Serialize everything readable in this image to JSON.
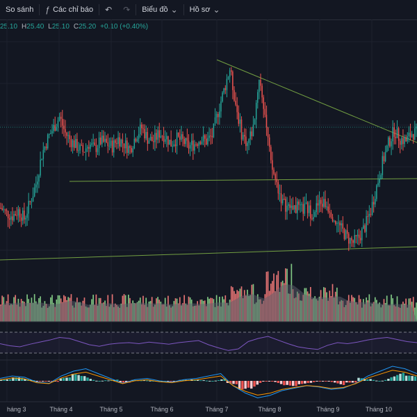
{
  "toolbar": {
    "compare_label": "So sánh",
    "indicators_label": "Các chỉ báo",
    "chart_label": "Biểu đồ",
    "profile_label": "Hồ sơ"
  },
  "ohlc": {
    "open": "25.10",
    "high_key": "H",
    "high": "25.40",
    "low_key": "L",
    "low": "25.10",
    "close_key": "C",
    "close": "25.20",
    "change": "+0.10 (+0.40%)"
  },
  "colors": {
    "up": "#26a69a",
    "down": "#ef5350",
    "vol_up": "#81c784",
    "vol_down": "#e57373",
    "trend": "#8bc34a"
  },
  "x_axis": {
    "labels": [
      "háng 3",
      "Tháng 4",
      "Tháng 5",
      "Tháng 6",
      "Tháng 7",
      "Tháng 8",
      "Tháng 9",
      "Tháng 10"
    ]
  },
  "chart_data": {
    "type": "candlestick",
    "price": [
      22.6,
      22.4,
      22.3,
      22.5,
      22.2,
      22.8,
      23.5,
      24.6,
      25.2,
      25.6,
      26.0,
      25.4,
      25.1,
      24.9,
      24.7,
      25.0,
      24.8,
      25.1,
      25.0,
      24.9,
      25.2,
      25.0,
      24.8,
      25.3,
      25.6,
      25.2,
      25.1,
      25.4,
      25.3,
      25.0,
      25.2,
      25.1,
      24.9,
      25.0,
      25.2,
      25.1,
      25.3,
      26.2,
      27.0,
      27.8,
      26.5,
      25.4,
      25.0,
      25.6,
      27.5,
      26.1,
      24.2,
      23.5,
      22.8,
      22.6,
      22.7,
      22.5,
      22.6,
      22.4,
      22.7,
      22.8,
      22.6,
      22.1,
      21.8,
      21.5,
      21.3,
      21.5,
      21.9,
      22.5,
      23.4,
      24.3,
      25.0,
      25.5,
      25.2,
      25.1,
      25.4
    ],
    "rsi": [
      48,
      44,
      42,
      47,
      51,
      55,
      60,
      58,
      52,
      46,
      43,
      47,
      49,
      50,
      48,
      51,
      49,
      47,
      50,
      52,
      54,
      46,
      40,
      35,
      38,
      52,
      58,
      62,
      55,
      48,
      42,
      39,
      37,
      45,
      50,
      48,
      51,
      55,
      58,
      60,
      56,
      52,
      50
    ],
    "macd": [
      0.1,
      0.2,
      0.15,
      -0.05,
      -0.1,
      0.2,
      0.4,
      0.5,
      0.3,
      0.1,
      -0.1,
      0.05,
      0.1,
      0.0,
      -0.05,
      0.05,
      0.1,
      0.2,
      0.3,
      -0.2,
      -0.5,
      -0.7,
      -0.6,
      -0.4,
      -0.3,
      -0.2,
      -0.25,
      -0.35,
      -0.3,
      -0.1,
      0.2,
      0.4,
      0.6,
      0.5,
      0.3
    ]
  }
}
